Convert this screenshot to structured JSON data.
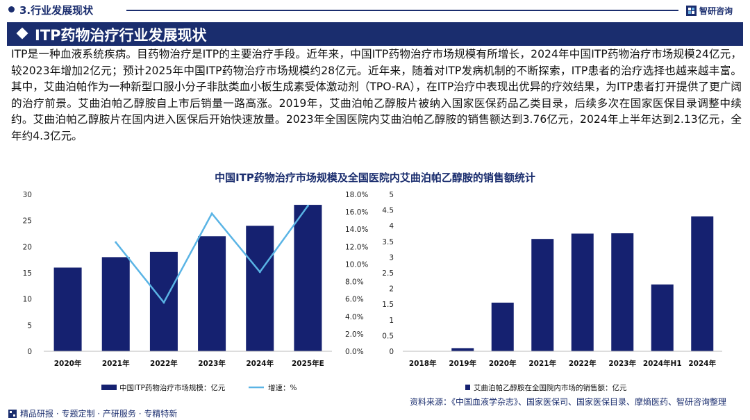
{
  "header": {
    "section": "3.行业发展现状",
    "brand": "智研咨询"
  },
  "banner": {
    "title": "ITP药物治疗行业发展现状"
  },
  "body_text": "ITP是一种血液系统疾病。目药物治疗是ITP的主要治疗手段。近年来，中国ITP药物治疗市场规模有所增长，2024年中国ITP药物治疗市场规模24亿元，较2023年增加2亿元；预计2025年中国ITP药物治疗市场规模约28亿元。近年来，随着对ITP发病机制的不断探索，ITP患者的治疗选择也越来越丰富。其中，艾曲泊帕作为一种新型口服小分子非肽类血小板生成素受体激动剂（TPO-RA），在ITP治疗中表现出优异的疗效结果，为ITP患者打开提供了更广阔的治疗前景。艾曲泊帕乙醇胺自上市后销量一路高涨。2019年，艾曲泊帕乙醇胺片被纳入国家医保药品乙类目录，后续多次在国家医保目录调整中续约。艾曲泊帕乙醇胺片在国内进入医保后开始快速放量。2023年全国医院内艾曲泊帕乙醇胺的销售额达到3.76亿元，2024年上半年达到2.13亿元，全年约4.3亿元。",
  "figure_title": "中国ITP药物治疗市场规模及全国医院内艾曲泊帕乙醇胺的销售额统计",
  "chart_data": [
    {
      "type": "bar+line",
      "categories": [
        "2020年",
        "2021年",
        "2022年",
        "2023年",
        "2024年",
        "2025年E"
      ],
      "series": [
        {
          "name": "中国ITP药物治疗市场规模：亿元",
          "type": "bar",
          "axis": "left",
          "values": [
            16,
            18,
            19,
            22,
            24,
            28
          ]
        },
        {
          "name": "增速：%",
          "type": "line",
          "axis": "right",
          "values": [
            null,
            12.5,
            5.6,
            15.8,
            9.1,
            16.7
          ]
        }
      ],
      "ylim_left": [
        0,
        30
      ],
      "yticks_left": [
        "0",
        "5",
        "10",
        "15",
        "20",
        "25",
        "30"
      ],
      "ylim_right": [
        0,
        18
      ],
      "yticks_right": [
        "0.0%",
        "2.0%",
        "4.0%",
        "6.0%",
        "8.0%",
        "10.0%",
        "12.0%",
        "14.0%",
        "16.0%",
        "18.0%"
      ],
      "legend": "bottom",
      "colors": {
        "bar": "#152170",
        "line": "#5ab4e5"
      }
    },
    {
      "type": "bar",
      "categories": [
        "2018年",
        "2019年",
        "2020年",
        "2021年",
        "2022年",
        "2023年",
        "2024年H1",
        "2024年"
      ],
      "values": [
        0,
        0.1,
        1.55,
        3.58,
        3.75,
        3.76,
        2.13,
        4.3
      ],
      "series_name": "艾曲泊帕乙醇胺在全国院内市场的销售额：亿元",
      "ylim": [
        0,
        5
      ],
      "yticks": [
        "0",
        "0.5",
        "1",
        "1.5",
        "2",
        "2.5",
        "3",
        "3.5",
        "4",
        "4.5",
        "5"
      ],
      "legend": "bottom",
      "colors": {
        "bar": "#152170"
      }
    }
  ],
  "source": "资料来源：《中国血液学杂志》、国家医保司、国家医保目录、摩熵医药、智研咨询整理",
  "footer": "精品研报 · 专题定制 · 产研服务 · 专精特新"
}
